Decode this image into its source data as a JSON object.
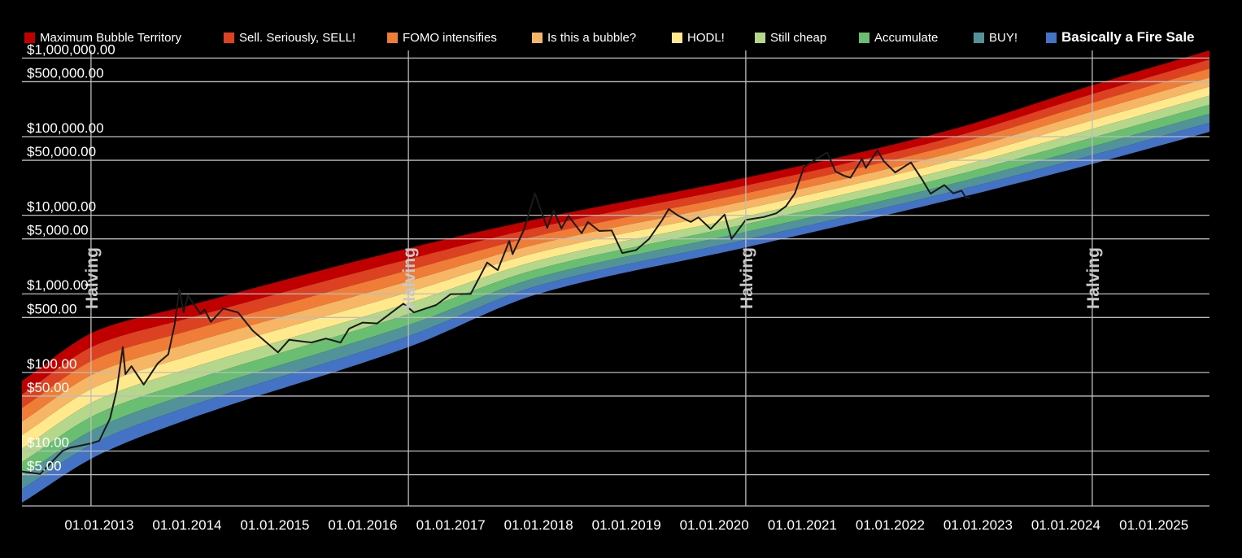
{
  "chart_data": {
    "type": "line",
    "title": "",
    "xlabel": "",
    "ylabel": "",
    "y_scale": "log",
    "ylim": [
      2.0,
      1250000
    ],
    "xlim": [
      "2012-02-15",
      "2025-08-20"
    ],
    "grid": true,
    "legend_position": "top",
    "y_ticks": [
      {
        "value": 1000000,
        "label": "$1,000,000.00"
      },
      {
        "value": 500000,
        "label": "$500,000.00"
      },
      {
        "value": 100000,
        "label": "$100,000.00"
      },
      {
        "value": 50000,
        "label": "$50,000.00"
      },
      {
        "value": 10000,
        "label": "$10,000.00"
      },
      {
        "value": 5000,
        "label": "$5,000.00"
      },
      {
        "value": 1000,
        "label": "$1,000.00"
      },
      {
        "value": 500,
        "label": "$500.00"
      },
      {
        "value": 100,
        "label": "$100.00"
      },
      {
        "value": 50,
        "label": "$50.00"
      },
      {
        "value": 10,
        "label": "$10.00"
      },
      {
        "value": 5,
        "label": "$5.00"
      }
    ],
    "x_ticks": [
      {
        "value": "2013-01-01",
        "label": "01.01.2013"
      },
      {
        "value": "2014-01-01",
        "label": "01.01.2014"
      },
      {
        "value": "2015-01-01",
        "label": "01.01.2015"
      },
      {
        "value": "2016-01-01",
        "label": "01.01.2016"
      },
      {
        "value": "2017-01-01",
        "label": "01.01.2017"
      },
      {
        "value": "2018-01-01",
        "label": "01.01.2018"
      },
      {
        "value": "2019-01-01",
        "label": "01.01.2019"
      },
      {
        "value": "2020-01-01",
        "label": "01.01.2020"
      },
      {
        "value": "2021-01-01",
        "label": "01.01.2021"
      },
      {
        "value": "2022-01-01",
        "label": "01.01.2022"
      },
      {
        "value": "2023-01-01",
        "label": "01.01.2023"
      },
      {
        "value": "2024-01-01",
        "label": "01.01.2024"
      },
      {
        "value": "2025-01-01",
        "label": "01.01.2025"
      }
    ],
    "halvings": [
      {
        "date": "2012-11-28",
        "label": "Halving"
      },
      {
        "date": "2016-07-09",
        "label": "Halving"
      },
      {
        "date": "2020-05-11",
        "label": "Halving"
      },
      {
        "date": "2024-04-20",
        "label": "Halving"
      }
    ],
    "band_boundaries": {
      "x": [
        "2012-02-15",
        "2013-01-01",
        "2014-01-01",
        "2016-07-09",
        "2018-01-01",
        "2020-05-11",
        "2022-09-01",
        "2024-04-20",
        "2025-08-20"
      ],
      "upper_edge": [
        78,
        350,
        700,
        3800,
        9000,
        30000,
        120000,
        450000,
        1250000
      ],
      "lower_edge": [
        2.2,
        9,
        25,
        210,
        1000,
        3900,
        15500,
        45000,
        115000
      ]
    },
    "bands": [
      {
        "name": "Maximum Bubble Territory",
        "color": "#c00000"
      },
      {
        "name": "Sell. Seriously, SELL!",
        "color": "#dc4222"
      },
      {
        "name": "FOMO intensifies",
        "color": "#f07d37"
      },
      {
        "name": "Is this a bubble?",
        "color": "#f7b566"
      },
      {
        "name": "HODL!",
        "color": "#ffe98c"
      },
      {
        "name": "Still cheap",
        "color": "#b5d78b"
      },
      {
        "name": "Accumulate",
        "color": "#6abe72"
      },
      {
        "name": "BUY!",
        "color": "#529299"
      },
      {
        "name": "Basically a Fire Sale",
        "color": "#4472c4"
      }
    ],
    "price_series": {
      "color": "#1a1a1a",
      "x": [
        "2012-02-15",
        "2012-05-01",
        "2012-08-01",
        "2012-09-01",
        "2012-11-28",
        "2013-01-01",
        "2013-02-15",
        "2013-03-15",
        "2013-04-09",
        "2013-04-20",
        "2013-05-15",
        "2013-07-05",
        "2013-09-01",
        "2013-10-15",
        "2013-11-10",
        "2013-11-30",
        "2013-12-18",
        "2014-01-05",
        "2014-02-25",
        "2014-03-15",
        "2014-04-10",
        "2014-06-01",
        "2014-08-01",
        "2014-10-01",
        "2015-01-14",
        "2015-03-01",
        "2015-06-01",
        "2015-08-01",
        "2015-10-01",
        "2015-11-05",
        "2016-01-01",
        "2016-03-01",
        "2016-06-18",
        "2016-08-01",
        "2016-11-01",
        "2017-01-01",
        "2017-03-25",
        "2017-06-01",
        "2017-07-15",
        "2017-09-01",
        "2017-09-15",
        "2017-11-01",
        "2017-12-17",
        "2018-02-06",
        "2018-03-05",
        "2018-04-06",
        "2018-05-05",
        "2018-06-29",
        "2018-07-25",
        "2018-09-10",
        "2018-11-01",
        "2018-12-15",
        "2019-02-10",
        "2019-04-05",
        "2019-05-30",
        "2019-06-26",
        "2019-08-01",
        "2019-09-25",
        "2019-10-27",
        "2019-12-17",
        "2020-02-13",
        "2020-03-13",
        "2020-05-11",
        "2020-07-25",
        "2020-09-15",
        "2020-10-25",
        "2020-12-01",
        "2021-01-08",
        "2021-02-15",
        "2021-04-14",
        "2021-05-19",
        "2021-06-22",
        "2021-07-20",
        "2021-09-06",
        "2021-09-22",
        "2021-11-09",
        "2021-12-05",
        "2022-01-22",
        "2022-03-28",
        "2022-05-12",
        "2022-06-18",
        "2022-08-14",
        "2022-09-20",
        "2022-10-25",
        "2022-11-12",
        "2022-12-01"
      ],
      "y": [
        5.5,
        5.1,
        10,
        11,
        12.5,
        13.5,
        26,
        60,
        210,
        95,
        120,
        70,
        130,
        170,
        400,
        1140,
        580,
        950,
        560,
        630,
        440,
        650,
        580,
        340,
        180,
        260,
        240,
        270,
        240,
        360,
        430,
        420,
        750,
        580,
        720,
        990,
        1000,
        2500,
        2000,
        4700,
        3200,
        6500,
        19000,
        6900,
        11500,
        6800,
        9800,
        5900,
        8200,
        6300,
        6400,
        3300,
        3600,
        5000,
        8700,
        12000,
        10000,
        8200,
        9400,
        6700,
        10200,
        5000,
        8700,
        9500,
        10600,
        13000,
        19000,
        41000,
        49000,
        63000,
        36000,
        32000,
        30000,
        52000,
        40000,
        67000,
        49000,
        35000,
        47000,
        29000,
        18800,
        24200,
        19000,
        20500,
        16700,
        16900
      ]
    }
  }
}
